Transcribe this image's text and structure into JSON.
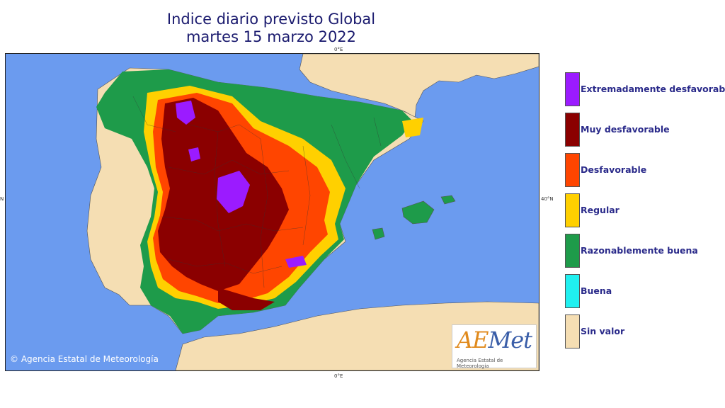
{
  "title": {
    "line1": "Indice diario previsto Global",
    "line2": "martes 15 marzo 2022"
  },
  "axis_labels": {
    "top": "0°E",
    "bottom": "0°E",
    "right": "40°N",
    "left": "N"
  },
  "credit": "Agencia Estatal de Meteorología",
  "logo": {
    "brand_a": "AE",
    "brand_b": "Met",
    "subtitle": "Agencia Estatal de Meteorologia"
  },
  "colors": {
    "sea": "#6b9bef",
    "land_no_value": "#f5deb3"
  },
  "legend": [
    {
      "label": "Extremadamente desfavorable",
      "color": "#9b1bff"
    },
    {
      "label": "Muy desfavorable",
      "color": "#8b0000"
    },
    {
      "label": "Desfavorable",
      "color": "#ff4500"
    },
    {
      "label": "Regular",
      "color": "#ffd000"
    },
    {
      "label": "Razonablemente buena",
      "color": "#1e9b4a"
    },
    {
      "label": "Buena",
      "color": "#20f0f0"
    },
    {
      "label": "Sin valor",
      "color": "#f5deb3"
    }
  ]
}
